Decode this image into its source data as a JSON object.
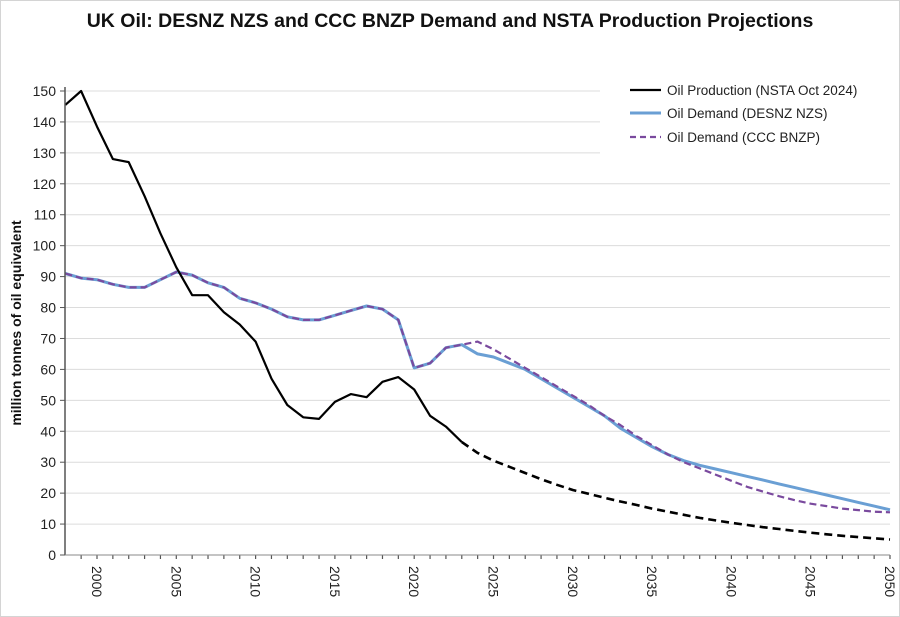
{
  "chart_data": {
    "type": "line",
    "title": "UK Oil: DESNZ NZS and CCC BNZP Demand and NSTA Production Projections",
    "xlabel": "",
    "ylabel": "million tonnes of oil equivalent",
    "xlim": [
      1998,
      2050
    ],
    "ylim": [
      0,
      150
    ],
    "yticks": [
      0,
      10,
      20,
      30,
      40,
      50,
      60,
      70,
      80,
      90,
      100,
      110,
      120,
      130,
      140,
      150
    ],
    "xticks": [
      2000,
      2005,
      2010,
      2015,
      2020,
      2025,
      2030,
      2035,
      2040,
      2045,
      2050
    ],
    "grid": "horizontal",
    "legend_position": "top-right",
    "series": [
      {
        "name": "Oil Production (NSTA Oct 2024)",
        "color": "#000000",
        "style": "solid-then-dashed",
        "projection_start": 2023,
        "x": [
          1998,
          1999,
          2000,
          2001,
          2002,
          2003,
          2004,
          2005,
          2006,
          2007,
          2008,
          2009,
          2010,
          2011,
          2012,
          2013,
          2014,
          2015,
          2016,
          2017,
          2018,
          2019,
          2020,
          2021,
          2022,
          2023,
          2024,
          2025,
          2026,
          2027,
          2028,
          2029,
          2030,
          2031,
          2032,
          2033,
          2034,
          2035,
          2036,
          2037,
          2038,
          2039,
          2040,
          2041,
          2042,
          2043,
          2044,
          2045,
          2046,
          2047,
          2048,
          2049,
          2050
        ],
        "values": [
          145.5,
          150,
          138.5,
          128,
          127,
          116,
          104,
          93,
          84,
          84,
          78.5,
          74.5,
          69,
          57,
          48.5,
          44.5,
          44,
          49.5,
          52,
          51,
          56,
          57.5,
          53.5,
          45,
          41.5,
          36.5,
          33,
          30.5,
          28.5,
          26.5,
          24.5,
          22.7,
          21,
          19.8,
          18.5,
          17.3,
          16.2,
          15,
          14,
          13,
          12,
          11.2,
          10.4,
          9.7,
          9,
          8.4,
          7.8,
          7.2,
          6.7,
          6.2,
          5.8,
          5.4,
          5
        ]
      },
      {
        "name": "Oil Demand (DESNZ NZS)",
        "color": "#6a9fd4",
        "style": "solid",
        "x": [
          1998,
          1999,
          2000,
          2001,
          2002,
          2003,
          2004,
          2005,
          2006,
          2007,
          2008,
          2009,
          2010,
          2011,
          2012,
          2013,
          2014,
          2015,
          2016,
          2017,
          2018,
          2019,
          2020,
          2021,
          2022,
          2023,
          2024,
          2025,
          2026,
          2027,
          2028,
          2029,
          2030,
          2031,
          2032,
          2033,
          2034,
          2035,
          2036,
          2037,
          2038,
          2039,
          2040,
          2041,
          2042,
          2043,
          2044,
          2045,
          2046,
          2047,
          2048,
          2049,
          2050
        ],
        "values": [
          91,
          89.5,
          89,
          87.5,
          86.5,
          86.5,
          89,
          91.5,
          90.5,
          88,
          86.5,
          83,
          81.5,
          79.5,
          77,
          76,
          76,
          77.5,
          79,
          80.5,
          79.5,
          76,
          60.5,
          62,
          67,
          68,
          65,
          64,
          62,
          60,
          57,
          54,
          51,
          48,
          45,
          41,
          38,
          35,
          32.5,
          30.5,
          29,
          27.8,
          26.6,
          25.4,
          24.2,
          23,
          21.8,
          20.6,
          19.4,
          18.2,
          17,
          15.8,
          14.6
        ]
      },
      {
        "name": "Oil Demand (CCC BNZP)",
        "color": "#7a4a9e",
        "style": "dashed",
        "x": [
          1998,
          1999,
          2000,
          2001,
          2002,
          2003,
          2004,
          2005,
          2006,
          2007,
          2008,
          2009,
          2010,
          2011,
          2012,
          2013,
          2014,
          2015,
          2016,
          2017,
          2018,
          2019,
          2020,
          2021,
          2022,
          2023,
          2024,
          2025,
          2026,
          2027,
          2028,
          2029,
          2030,
          2031,
          2032,
          2033,
          2034,
          2035,
          2036,
          2037,
          2038,
          2039,
          2040,
          2041,
          2042,
          2043,
          2044,
          2045,
          2046,
          2047,
          2048,
          2049,
          2050
        ],
        "values": [
          91,
          89.5,
          89,
          87.5,
          86.5,
          86.5,
          89,
          91.5,
          90.5,
          88,
          86.5,
          83,
          81.5,
          79.5,
          77,
          76,
          76,
          77.5,
          79,
          80.5,
          79.5,
          76,
          60.5,
          62,
          67,
          68,
          69,
          66.5,
          63.5,
          60.5,
          57.5,
          54.5,
          51.5,
          48.5,
          45,
          42,
          38.5,
          35.5,
          32.5,
          30,
          28,
          26,
          24,
          22,
          20.5,
          19,
          17.7,
          16.6,
          15.8,
          15,
          14.5,
          14,
          13.8
        ]
      }
    ]
  }
}
